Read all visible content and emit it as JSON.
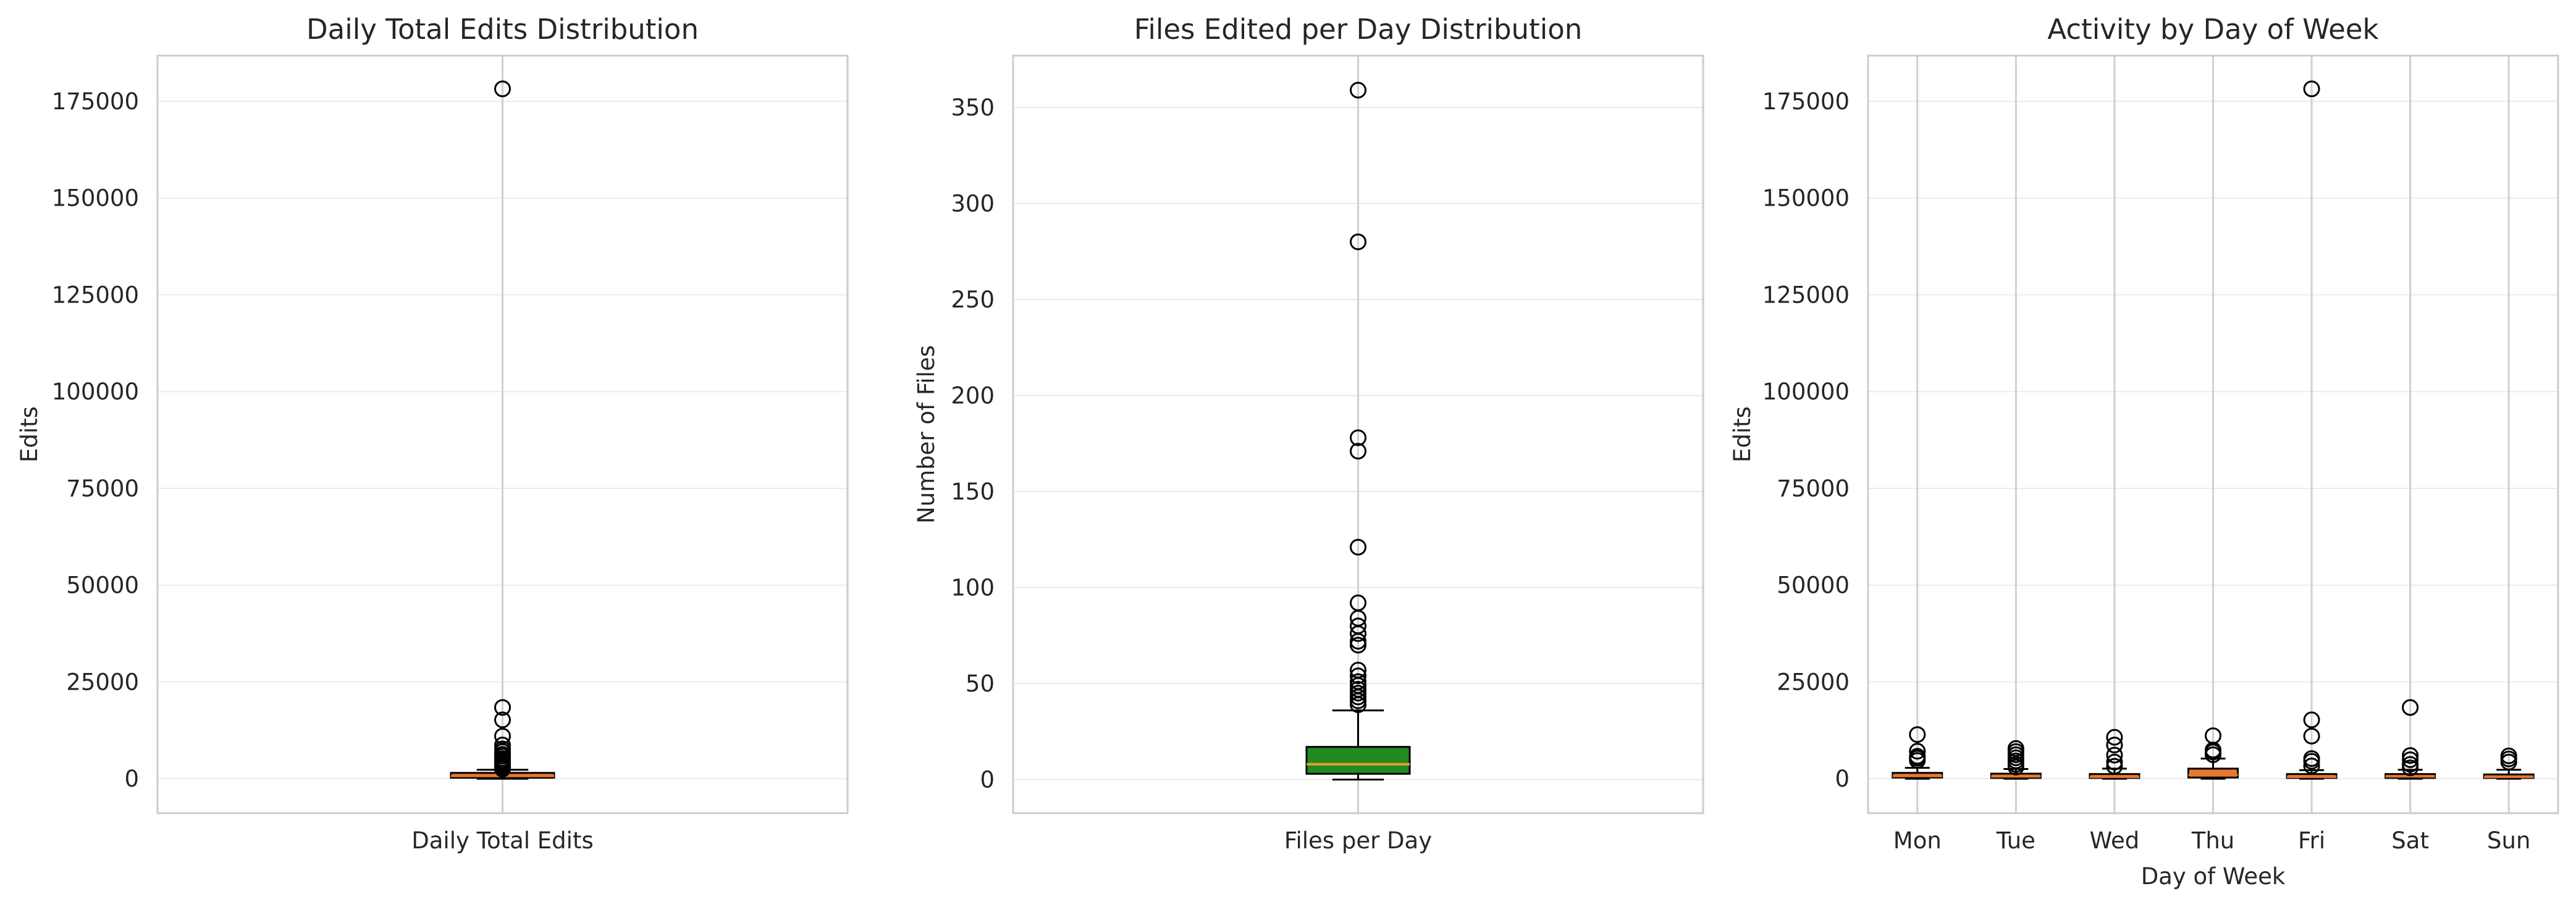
{
  "figure": {
    "background": "#ffffff"
  },
  "style": {
    "frame_color": "#cccccc",
    "grid_color": "#ebebeb",
    "whisker_color": "#000000",
    "flier_color": "#000000"
  },
  "chart_data": [
    {
      "type": "box",
      "title": "Daily Total Edits Distribution",
      "xlabel": "",
      "ylabel": "Edits",
      "ylim": [
        -8900,
        186800
      ],
      "yticks": [
        0,
        25000,
        50000,
        75000,
        100000,
        125000,
        150000,
        175000
      ],
      "grid": true,
      "categories": [
        "Daily Total Edits"
      ],
      "box_color": "#e8782d",
      "median_color": "#e8782d",
      "boxes": [
        {
          "q1": 250,
          "median": 700,
          "q3": 1500,
          "whisker_low": 0,
          "whisker_high": 2300,
          "fliers": [
            178200,
            18400,
            15200,
            11000,
            8700,
            7700,
            7000,
            6300,
            5800,
            5200,
            4700,
            4300,
            3900,
            3500,
            3100,
            2800,
            2500
          ]
        }
      ]
    },
    {
      "type": "box",
      "title": "Files Edited per Day Distribution",
      "xlabel": "",
      "ylabel": "Number of Files",
      "ylim": [
        -17.5,
        377
      ],
      "yticks": [
        0,
        50,
        100,
        150,
        200,
        250,
        300,
        350
      ],
      "grid": true,
      "categories": [
        "Files per Day"
      ],
      "box_color": "#238a23",
      "median_color": "#e8a030",
      "boxes": [
        {
          "q1": 3,
          "median": 8,
          "q3": 17,
          "whisker_low": 0,
          "whisker_high": 36,
          "fliers": [
            359,
            280,
            178,
            171,
            121,
            92,
            84,
            80,
            76,
            72,
            70,
            57,
            54,
            51,
            49,
            47,
            45,
            43,
            41,
            39
          ]
        }
      ]
    },
    {
      "type": "box",
      "title": "Activity by Day of Week",
      "xlabel": "Day of Week",
      "ylabel": "Edits",
      "ylim": [
        -8900,
        186800
      ],
      "yticks": [
        0,
        25000,
        50000,
        75000,
        100000,
        125000,
        150000,
        175000
      ],
      "grid": true,
      "categories": [
        "Mon",
        "Tue",
        "Wed",
        "Thu",
        "Fri",
        "Sat",
        "Sun"
      ],
      "box_color": "#e8782d",
      "median_color": "#e8782d",
      "boxes": [
        {
          "q1": 300,
          "median": 700,
          "q3": 1500,
          "whisker_low": 0,
          "whisker_high": 2800,
          "fliers": [
            11400,
            7100,
            5800,
            5300,
            4700
          ]
        },
        {
          "q1": 200,
          "median": 600,
          "q3": 1300,
          "whisker_low": 0,
          "whisker_high": 2500,
          "fliers": [
            7800,
            7000,
            6200,
            5400,
            4600,
            3700,
            3000
          ]
        },
        {
          "q1": 200,
          "median": 500,
          "q3": 1200,
          "whisker_low": 0,
          "whisker_high": 2600,
          "fliers": [
            10700,
            8700,
            6100,
            4300,
            3200
          ]
        },
        {
          "q1": 300,
          "median": 1000,
          "q3": 2600,
          "whisker_low": 0,
          "whisker_high": 5200,
          "fliers": [
            11100,
            7400,
            6900,
            6200
          ]
        },
        {
          "q1": 200,
          "median": 500,
          "q3": 1200,
          "whisker_low": 0,
          "whisker_high": 2200,
          "fliers": [
            178200,
            15200,
            11000,
            5200,
            4500,
            3300
          ]
        },
        {
          "q1": 200,
          "median": 600,
          "q3": 1200,
          "whisker_low": 0,
          "whisker_high": 2300,
          "fliers": [
            18400,
            6000,
            4900,
            3700,
            2800
          ]
        },
        {
          "q1": 200,
          "median": 500,
          "q3": 1100,
          "whisker_low": 0,
          "whisker_high": 2300,
          "fliers": [
            5900,
            5100,
            4300
          ]
        }
      ]
    }
  ]
}
